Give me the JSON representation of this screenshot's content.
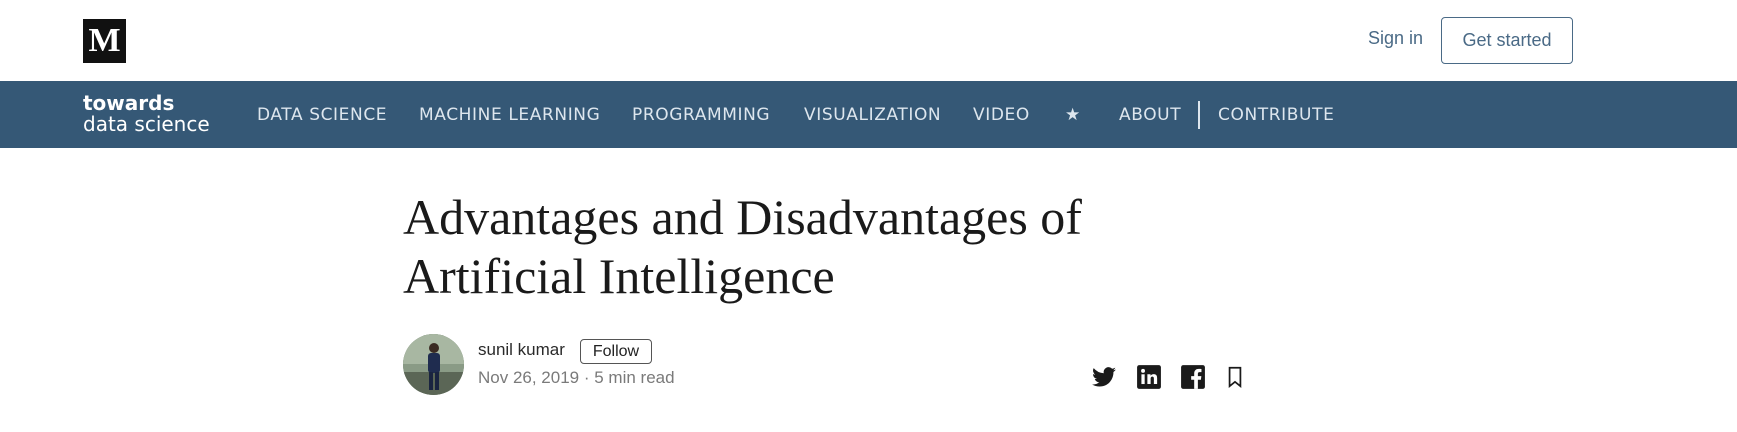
{
  "header": {
    "logo_letter": "M",
    "sign_in": "Sign in",
    "get_started": "Get started"
  },
  "publication": {
    "logo_line1": "towards",
    "logo_line2": "data science",
    "nav": [
      "DATA SCIENCE",
      "MACHINE LEARNING",
      "PROGRAMMING",
      "VISUALIZATION",
      "VIDEO",
      "★",
      "ABOUT",
      "CONTRIBUTE"
    ],
    "color": "#355876"
  },
  "article": {
    "title": "Advantages and Disadvantages of Artificial Intelligence",
    "author": "sunil kumar",
    "follow": "Follow",
    "meta": "Nov 26, 2019 · 5 min read",
    "share_icons": [
      "twitter-icon",
      "linkedin-icon",
      "facebook-icon",
      "bookmark-icon"
    ]
  }
}
